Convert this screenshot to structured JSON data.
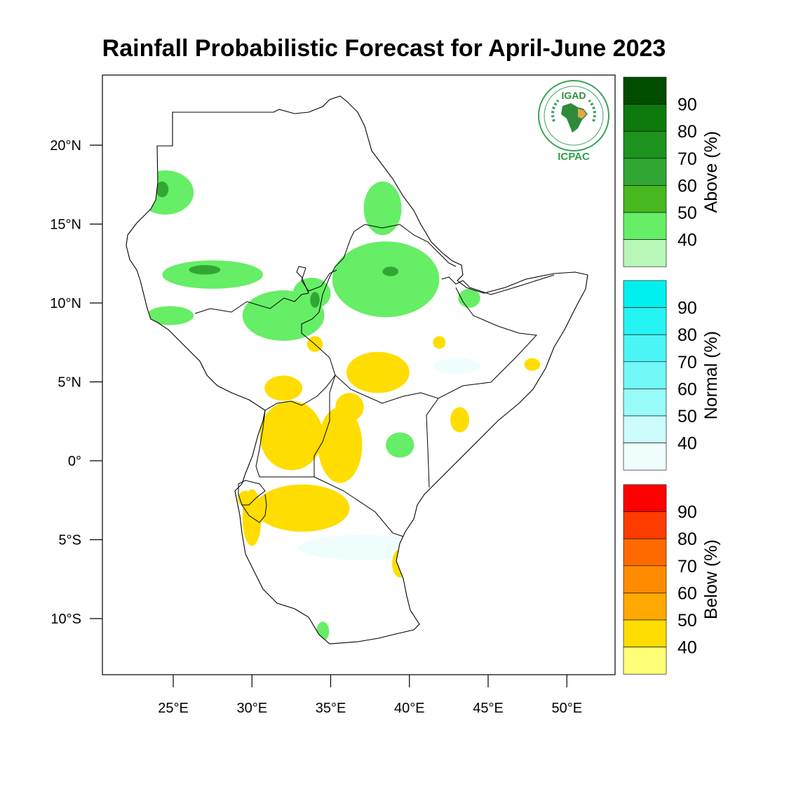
{
  "title": "Rainfall Probabilistic Forecast for April-June 2023",
  "logo": {
    "org_top": "IGAD",
    "org_bottom": "ICPAC",
    "green": "#2e9e4a"
  },
  "axes": {
    "lat_ticks": [
      {
        "value": 20,
        "label": "20°N"
      },
      {
        "value": 15,
        "label": "15°N"
      },
      {
        "value": 10,
        "label": "10°N"
      },
      {
        "value": 5,
        "label": "5°N"
      },
      {
        "value": 0,
        "label": "0°"
      },
      {
        "value": -5,
        "label": "5°S"
      },
      {
        "value": -10,
        "label": "10°S"
      }
    ],
    "lon_ticks": [
      {
        "value": 25,
        "label": "25°E"
      },
      {
        "value": 30,
        "label": "30°E"
      },
      {
        "value": 35,
        "label": "35°E"
      },
      {
        "value": 40,
        "label": "40°E"
      },
      {
        "value": 45,
        "label": "45°E"
      },
      {
        "value": 50,
        "label": "50°E"
      }
    ]
  },
  "legends": [
    {
      "name": "above",
      "title": "Above (%)",
      "labels": [
        "90",
        "80",
        "70",
        "60",
        "50",
        "40"
      ],
      "colors": [
        "#004d00",
        "#0d7a0d",
        "#1f931f",
        "#32a632",
        "#48b820",
        "#66ee66",
        "#b8f7b8"
      ]
    },
    {
      "name": "normal",
      "title": "Normal (%)",
      "labels": [
        "90",
        "80",
        "70",
        "60",
        "50",
        "40"
      ],
      "colors": [
        "#00f0f0",
        "#26f3f3",
        "#4cf5f5",
        "#73f8f8",
        "#99fafa",
        "#ccfcfc",
        "#effdfd"
      ]
    },
    {
      "name": "below",
      "title": "Below (%)",
      "labels": [
        "90",
        "80",
        "70",
        "60",
        "50",
        "40"
      ],
      "colors": [
        "#ff0000",
        "#ff3c00",
        "#ff6a00",
        "#ff8c00",
        "#ffa800",
        "#ffdd00",
        "#ffff77"
      ]
    }
  ],
  "regions": {
    "above": [
      {
        "lon": 24.5,
        "lat": 17.0,
        "rx": 1.8,
        "ry": 1.4
      },
      {
        "lon": 27.5,
        "lat": 11.8,
        "rx": 3.2,
        "ry": 0.9
      },
      {
        "lon": 24.8,
        "lat": 9.2,
        "rx": 1.5,
        "ry": 0.6
      },
      {
        "lon": 32.0,
        "lat": 9.2,
        "rx": 2.6,
        "ry": 1.6
      },
      {
        "lon": 33.8,
        "lat": 10.6,
        "rx": 1.2,
        "ry": 1.0
      },
      {
        "lon": 38.5,
        "lat": 11.5,
        "rx": 3.4,
        "ry": 2.4
      },
      {
        "lon": 38.3,
        "lat": 16.0,
        "rx": 1.2,
        "ry": 1.7
      },
      {
        "lon": 43.8,
        "lat": 10.3,
        "rx": 0.7,
        "ry": 0.6
      },
      {
        "lon": 39.4,
        "lat": 1.0,
        "rx": 0.9,
        "ry": 0.8
      },
      {
        "lon": 34.5,
        "lat": -10.8,
        "rx": 0.4,
        "ry": 0.6
      }
    ],
    "normal": [
      {
        "lon": 37.0,
        "lat": -5.5,
        "rx": 4.0,
        "ry": 0.8
      },
      {
        "lon": 43.0,
        "lat": 6.0,
        "rx": 1.5,
        "ry": 0.5
      }
    ],
    "below": [
      {
        "lon": 38.0,
        "lat": 5.6,
        "rx": 2.0,
        "ry": 1.3
      },
      {
        "lon": 34.0,
        "lat": 7.4,
        "rx": 0.5,
        "ry": 0.5
      },
      {
        "lon": 32.0,
        "lat": 4.6,
        "rx": 1.2,
        "ry": 0.8
      },
      {
        "lon": 32.5,
        "lat": 1.6,
        "rx": 2.0,
        "ry": 2.2
      },
      {
        "lon": 35.6,
        "lat": 1.0,
        "rx": 1.4,
        "ry": 2.4
      },
      {
        "lon": 36.2,
        "lat": 3.4,
        "rx": 0.9,
        "ry": 0.9
      },
      {
        "lon": 33.2,
        "lat": -3.0,
        "rx": 3.0,
        "ry": 1.5
      },
      {
        "lon": 30.0,
        "lat": -3.6,
        "rx": 0.6,
        "ry": 1.8
      },
      {
        "lon": 29.6,
        "lat": -2.4,
        "rx": 0.5,
        "ry": 0.5
      },
      {
        "lon": 43.2,
        "lat": 2.6,
        "rx": 0.6,
        "ry": 0.8
      },
      {
        "lon": 47.8,
        "lat": 6.1,
        "rx": 0.5,
        "ry": 0.4
      },
      {
        "lon": 39.4,
        "lat": -6.5,
        "rx": 0.5,
        "ry": 0.9
      },
      {
        "lon": 41.9,
        "lat": 7.5,
        "rx": 0.4,
        "ry": 0.4
      }
    ]
  }
}
